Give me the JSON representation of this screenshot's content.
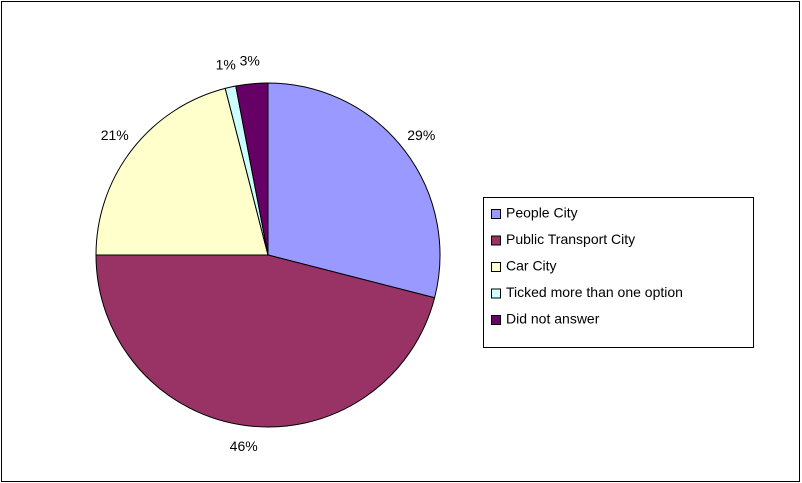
{
  "chart_data": {
    "type": "pie",
    "categories": [
      "People City",
      "Public Transport City",
      "Car City",
      "Ticked more than one option",
      "Did not answer"
    ],
    "values": [
      29,
      46,
      21,
      1,
      3
    ],
    "value_labels": [
      "29%",
      "46%",
      "21%",
      "1%",
      "3%"
    ],
    "colors": [
      "#9999ff",
      "#993366",
      "#ffffcc",
      "#ccffff",
      "#660066"
    ],
    "legend": "right"
  }
}
